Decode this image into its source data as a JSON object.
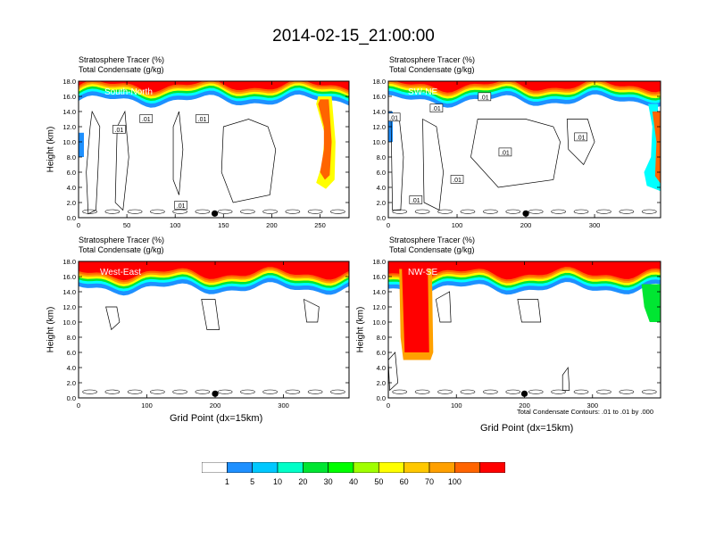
{
  "title": "2014-02-15_21:00:00",
  "chart_data": [
    {
      "type": "heatmap",
      "panel_label": "South-North",
      "subtitle_1": "Stratosphere Tracer   (%)",
      "subtitle_2": "Total Condensate   (g/kg)",
      "ylabel": "Height (km)",
      "xlabel": "",
      "xlim": [
        0,
        280
      ],
      "ylim": [
        0,
        18
      ],
      "xticks": [
        "0",
        "50",
        "100",
        "150",
        "200",
        "250"
      ],
      "xtick_values": [
        0,
        50,
        100,
        150,
        200,
        250
      ],
      "yticks": [
        "0.0",
        "2.0",
        "4.0",
        "6.0",
        "8.0",
        "10.0",
        "12.0",
        "14.0",
        "16.0",
        "18.0"
      ],
      "tracer_bottom_km": [
        [
          0,
          9
        ],
        [
          10,
          12
        ],
        [
          25,
          14
        ],
        [
          50,
          14.6
        ],
        [
          80,
          14.4
        ],
        [
          100,
          15
        ],
        [
          120,
          15.2
        ],
        [
          150,
          15.2
        ],
        [
          180,
          15.2
        ],
        [
          210,
          15.2
        ],
        [
          235,
          15.4
        ],
        [
          250,
          14
        ],
        [
          260,
          10
        ],
        [
          263,
          6
        ],
        [
          258,
          4.2
        ],
        [
          252,
          4.4
        ],
        [
          248,
          6
        ],
        [
          256,
          8
        ],
        [
          255,
          12
        ],
        [
          244,
          14.6
        ]
      ],
      "contour_labels": [
        ".01",
        ".01",
        ".01",
        ".01"
      ],
      "marker_x": 141
    },
    {
      "type": "heatmap",
      "panel_label": "SW-NE",
      "subtitle_1": "Stratosphere Tracer   (%)",
      "subtitle_2": "Total Condensate   (g/kg)",
      "ylabel": "",
      "xlabel": "",
      "xlim": [
        0,
        396
      ],
      "ylim": [
        0,
        18
      ],
      "xticks": [
        "0",
        "100",
        "200",
        "300"
      ],
      "xtick_values": [
        0,
        100,
        200,
        300
      ],
      "yticks": [
        "0.0",
        "2.0",
        "4.0",
        "6.0",
        "8.0",
        "10.0",
        "12.0",
        "14.0",
        "16.0",
        "18.0"
      ],
      "contour_labels": [
        ".01",
        ".01",
        ".01",
        ".01",
        ".01",
        ".01",
        ".01"
      ],
      "marker_x": 200
    },
    {
      "type": "heatmap",
      "panel_label": "West-East",
      "subtitle_1": "Stratosphere Tracer   (%)",
      "subtitle_2": "Total Condensate   (g/kg)",
      "ylabel": "Height (km)",
      "xlabel": "Grid Point (dx=15km)",
      "xlim": [
        0,
        396
      ],
      "ylim": [
        0,
        18
      ],
      "xticks": [
        "0",
        "100",
        "200",
        "300"
      ],
      "xtick_values": [
        0,
        100,
        200,
        300
      ],
      "yticks": [
        "0.0",
        "2.0",
        "4.0",
        "6.0",
        "8.0",
        "10.0",
        "12.0",
        "14.0",
        "16.0",
        "18.0"
      ],
      "marker_x": 200
    },
    {
      "type": "heatmap",
      "panel_label": "NW-SE",
      "subtitle_1": "Stratosphere Tracer   (%)",
      "subtitle_2": "Total Condensate   (g/kg)",
      "ylabel": "Height (km)",
      "xlabel": "Grid Point (dx=15km)",
      "xlim": [
        0,
        400
      ],
      "ylim": [
        0,
        18
      ],
      "xticks": [
        "0",
        "100",
        "200",
        "300"
      ],
      "xtick_values": [
        0,
        100,
        200,
        300
      ],
      "yticks": [
        "0.0",
        "2.0",
        "4.0",
        "6.0",
        "8.0",
        "10.0",
        "12.0",
        "14.0",
        "16.0",
        "18.0"
      ],
      "marker_x": 200,
      "note": "Total Condensate Contours: .01 to .01 by .000"
    }
  ],
  "colorbar": {
    "levels": [
      "1",
      "5",
      "10",
      "20",
      "30",
      "40",
      "50",
      "60",
      "70",
      "100"
    ],
    "colors": [
      "#ffffff",
      "#1e90ff",
      "#00c8ff",
      "#00ffc8",
      "#00e632",
      "#00ff00",
      "#a0ff00",
      "#ffff00",
      "#ffc800",
      "#ffa000",
      "#ff6400",
      "#ff0000"
    ]
  },
  "colors": {
    "red": "#ff0000",
    "orange_red": "#ff6400",
    "orange": "#ffa000",
    "yellow": "#ffff00",
    "green": "#00e632",
    "cyan": "#00ffff",
    "blue": "#1e90ff"
  }
}
